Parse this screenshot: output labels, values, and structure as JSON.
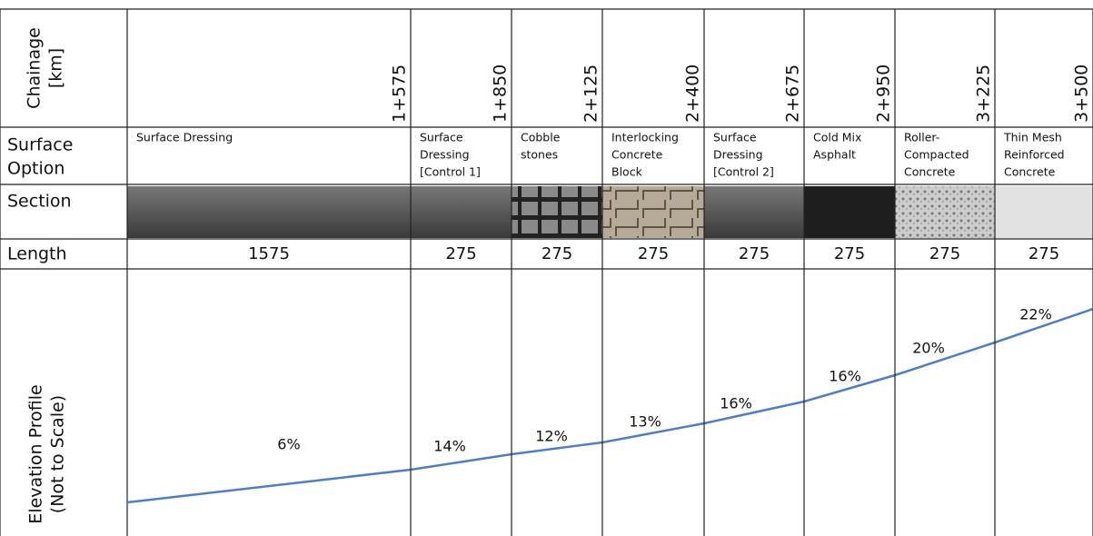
{
  "row_headers": {
    "chainage": [
      "Chainage",
      "[km]"
    ],
    "surface": [
      "Surface",
      "Option"
    ],
    "section": "Section",
    "length": "Length",
    "elevation": [
      "Elevation Profile",
      "(Not to Scale)"
    ]
  },
  "columns": [
    {
      "chainage": "1+575",
      "surface": [
        "Surface Dressing"
      ],
      "length": "1575",
      "grade": "6%"
    },
    {
      "chainage": "1+850",
      "surface": [
        "Surface",
        "Dressing",
        "[Control 1]"
      ],
      "length": "275",
      "grade": "14%"
    },
    {
      "chainage": "2+125",
      "surface": [
        "Cobble",
        "stones"
      ],
      "length": "275",
      "grade": "12%"
    },
    {
      "chainage": "2+400",
      "surface": [
        "Interlocking",
        "Concrete",
        "Block"
      ],
      "length": "275",
      "grade": "13%"
    },
    {
      "chainage": "2+675",
      "surface": [
        "Surface",
        "Dressing",
        "[Control 2]"
      ],
      "length": "275",
      "grade": "16%"
    },
    {
      "chainage": "2+950",
      "surface": [
        "Cold Mix",
        "Asphalt"
      ],
      "length": "275",
      "grade": "16%"
    },
    {
      "chainage": "3+225",
      "surface": [
        "Roller-",
        "Compacted",
        "Concrete"
      ],
      "length": "275",
      "grade": "20%"
    },
    {
      "chainage": "3+500",
      "surface": [
        "Thin Mesh",
        "Reinforced",
        "Concrete"
      ],
      "length": "275",
      "grade": "22%"
    }
  ]
}
